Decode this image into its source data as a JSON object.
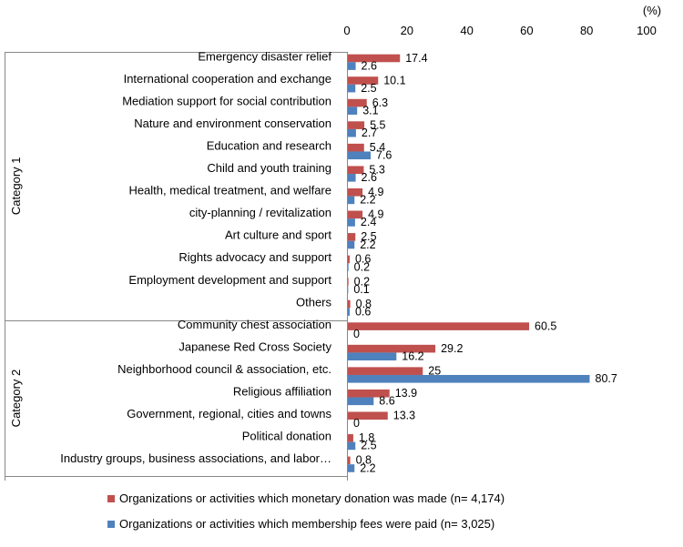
{
  "chart_data": {
    "type": "bar",
    "orientation": "horizontal",
    "unit": "(%)",
    "xlim": [
      0,
      100
    ],
    "xticks": [
      "0",
      "20",
      "40",
      "60",
      "80",
      "100"
    ],
    "groups": [
      {
        "name": "Category 1",
        "categories": [
          "Emergency disaster relief",
          "International cooperation and exchange",
          "Mediation support for social contribution",
          "Nature and environment conservation",
          "Education and research",
          "Child and youth training",
          "Health, medical treatment, and welfare",
          "city-planning / revitalization",
          "Art culture and sport",
          "Rights advocacy and support",
          "Employment development and support",
          "Others"
        ]
      },
      {
        "name": "Category 2",
        "categories": [
          "Community chest association",
          "Japanese Red Cross Society",
          "Neighborhood council & association, etc.",
          "Religious affiliation",
          "Government, regional, cities and towns",
          "Political donation",
          "Industry groups, business associations, and labor…"
        ]
      }
    ],
    "series": [
      {
        "name": "Organizations or activities which monetary donation was made (n= 4,174)",
        "color": "#c0504d",
        "values": [
          17.4,
          10.1,
          6.3,
          5.5,
          5.4,
          5.3,
          4.9,
          4.9,
          2.5,
          0.6,
          0.2,
          0.8,
          60.5,
          29.2,
          25,
          13.9,
          13.3,
          1.8,
          0.8
        ]
      },
      {
        "name": "Organizations or activities which membership fees were paid  (n= 3,025)",
        "color": "#4f81bd",
        "values": [
          2.6,
          2.5,
          3.1,
          2.7,
          7.6,
          2.6,
          2.2,
          2.4,
          2.2,
          0.2,
          0.1,
          0.6,
          0,
          16.2,
          80.7,
          8.6,
          0,
          2.5,
          2.2
        ]
      }
    ],
    "legend_position": "bottom",
    "grid": false
  }
}
